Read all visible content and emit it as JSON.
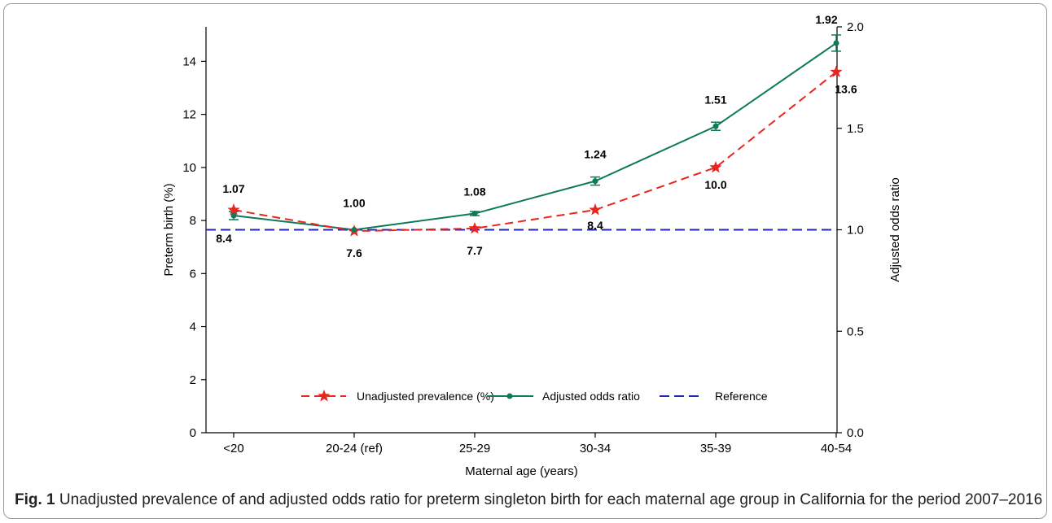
{
  "caption": {
    "lead": "Fig. 1",
    "text": "Unadjusted prevalence of and adjusted odds ratio for preterm singleton birth for each maternal age group in California for the period 2007–2016"
  },
  "chart_data": {
    "type": "line",
    "categories": [
      "<20",
      "20-24 (ref)",
      "25-29",
      "30-34",
      "35-39",
      "40-54"
    ],
    "xlabel": "Maternal age (years)",
    "ylabel": "Preterm birth (%)",
    "ylabel_right": "Adjusted odds ratio",
    "ylim": [
      0,
      15.3
    ],
    "ylim_right": [
      0,
      2.0
    ],
    "yticks": [
      0,
      2,
      4,
      6,
      8,
      10,
      12,
      14
    ],
    "yticks_right": [
      "0.0",
      "0.5",
      "1.0",
      "1.5",
      "2.0"
    ],
    "grid": false,
    "legend_position": "bottom-center",
    "series": [
      {
        "name": "Unadjusted prevalence (%)",
        "axis": "left",
        "color": "#e8251f",
        "style": "dashed",
        "marker": "star",
        "values": [
          8.4,
          7.6,
          7.7,
          8.4,
          10.0,
          13.6
        ],
        "labels": [
          "8.4",
          "7.6",
          "7.7",
          "8.4",
          "10.0",
          "13.6"
        ]
      },
      {
        "name": "Adjusted odds ratio",
        "axis": "right",
        "color": "#0e7a5a",
        "style": "solid",
        "marker": "dot",
        "values": [
          1.07,
          1.0,
          1.08,
          1.24,
          1.51,
          1.92
        ],
        "ci_low": [
          1.05,
          1.0,
          1.07,
          1.22,
          1.49,
          1.88
        ],
        "ci_high": [
          1.09,
          1.0,
          1.09,
          1.26,
          1.53,
          1.96
        ],
        "labels": [
          "1.07",
          "1.00",
          "1.08",
          "1.24",
          "1.51",
          "1.92"
        ]
      },
      {
        "name": "Reference",
        "axis": "right",
        "color": "#2525b5",
        "style": "dashed",
        "marker": "none",
        "values": [
          1.0,
          1.0,
          1.0,
          1.0,
          1.0,
          1.0
        ]
      }
    ]
  }
}
